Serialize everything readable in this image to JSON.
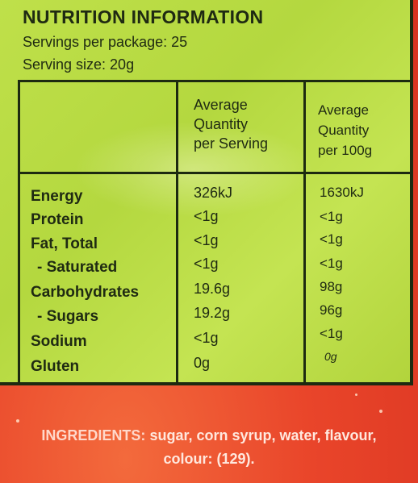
{
  "panel": {
    "title": "NUTRITION INFORMATION",
    "servings_per_package": "Servings per package: 25",
    "serving_size": "Serving size:  20g",
    "col_headers": [
      [
        "Average",
        "Quantity",
        "per Serving"
      ],
      [
        "Average",
        "Quantity",
        "per 100g"
      ]
    ],
    "rows": [
      {
        "label": "Energy",
        "per_serving": "326kJ",
        "per_100g": "1630kJ"
      },
      {
        "label": "Protein",
        "per_serving": "<1g",
        "per_100g": "<1g"
      },
      {
        "label": "Fat, Total",
        "per_serving": "<1g",
        "per_100g": "<1g"
      },
      {
        "label": "- Saturated",
        "per_serving": "<1g",
        "per_100g": "<1g"
      },
      {
        "label": "Carbohydrates",
        "per_serving": "19.6g",
        "per_100g": "98g"
      },
      {
        "label": "- Sugars",
        "per_serving": "19.2g",
        "per_100g": "96g"
      },
      {
        "label": "Sodium",
        "per_serving": "<1g",
        "per_100g": "<1g"
      },
      {
        "label": "Gluten",
        "per_serving": "0g",
        "per_100g": "0g"
      }
    ]
  },
  "ingredients": {
    "key": "INGREDIENTS:",
    "line1": "sugar, corn syrup, water, flavour,",
    "line2": "colour: (129)."
  },
  "colors": {
    "panel_green": "#b4d83f",
    "bag_red": "#e9452a",
    "ink": "#1f2a12"
  }
}
